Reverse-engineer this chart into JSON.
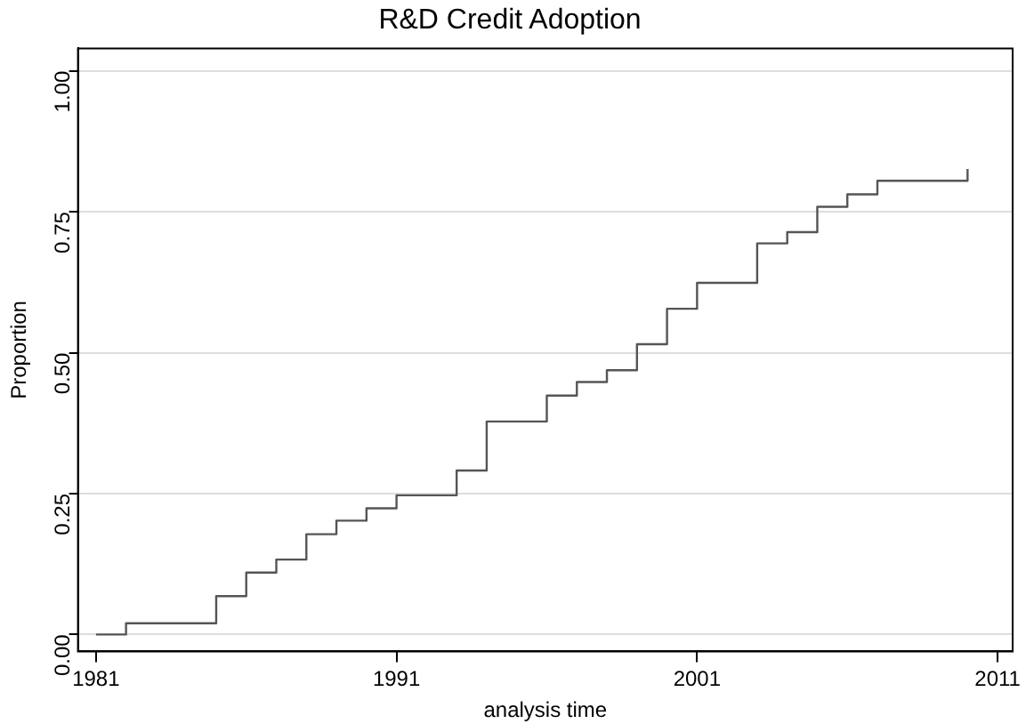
{
  "chart_data": {
    "type": "step",
    "title": "R&D Credit Adoption",
    "xlabel": "analysis time",
    "ylabel": "Proportion",
    "x": [
      1981,
      1982,
      1985,
      1986,
      1987,
      1988,
      1989,
      1990,
      1991,
      1993,
      1994,
      1996,
      1997,
      1998,
      1999,
      2000,
      2001,
      2003,
      2004,
      2005,
      2006,
      2007,
      2010,
      2010
    ],
    "values": [
      0,
      0.02,
      0.068,
      0.11,
      0.133,
      0.178,
      0.202,
      0.224,
      0.247,
      0.291,
      0.378,
      0.424,
      0.448,
      0.469,
      0.515,
      0.578,
      0.624,
      0.694,
      0.714,
      0.759,
      0.781,
      0.805,
      0.805,
      0.826
    ],
    "color": "#555555",
    "xlim": [
      1980.4,
      2011.5
    ],
    "xticks": [
      1981,
      1991,
      2001,
      2011
    ],
    "ylim": [
      -0.03,
      1.04
    ],
    "yticks": [
      {
        "value": 0,
        "label": "0.00"
      },
      {
        "value": 0.25,
        "label": "0.25"
      },
      {
        "value": 0.5,
        "label": "0.50"
      },
      {
        "value": 0.75,
        "label": "0.75"
      },
      {
        "value": 1,
        "label": "1.00"
      }
    ],
    "grid": "y",
    "legend": false,
    "marker": "none",
    "line_style": "solid"
  }
}
